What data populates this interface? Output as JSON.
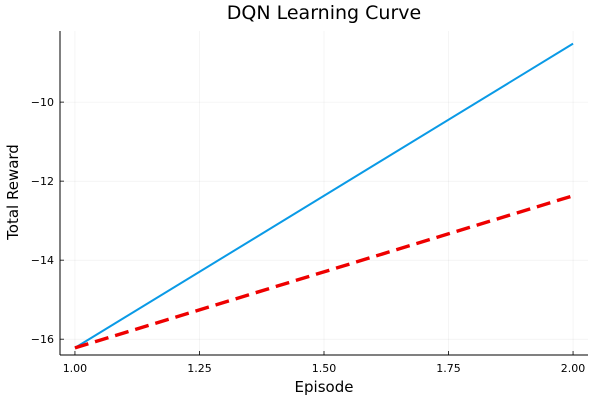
{
  "chart_data": {
    "type": "line",
    "title": "DQN Learning Curve",
    "xlabel": "Episode",
    "ylabel": "Total Reward",
    "xlim": [
      0.97,
      2.03
    ],
    "ylim": [
      -16.4,
      -8.2
    ],
    "x_ticks": [
      1.0,
      1.25,
      1.5,
      1.75,
      2.0
    ],
    "x_tick_labels": [
      "1.00",
      "1.25",
      "1.50",
      "1.75",
      "2.00"
    ],
    "y_ticks": [
      -16,
      -14,
      -12,
      -10
    ],
    "y_tick_labels": [
      "−16",
      "−14",
      "−12",
      "−10"
    ],
    "grid": true,
    "legend": "none",
    "series": [
      {
        "x": [
          1,
          2
        ],
        "values": [
          -16.22,
          -8.52
        ],
        "color": "#0a9ae6",
        "style": "solid"
      },
      {
        "x": [
          1,
          2
        ],
        "values": [
          -16.22,
          -12.37
        ],
        "color": "#ee0000",
        "style": "dashed"
      }
    ]
  }
}
